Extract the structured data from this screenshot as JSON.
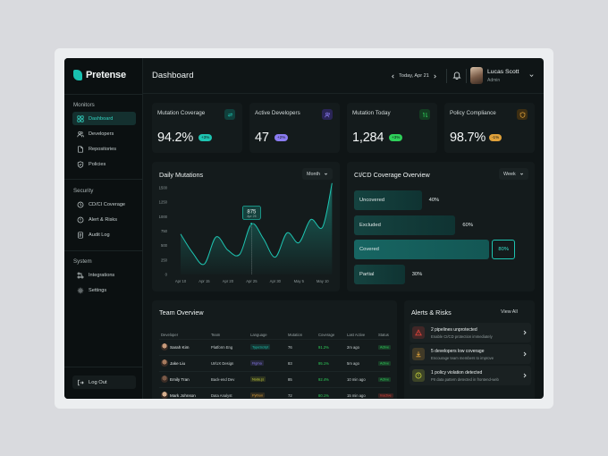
{
  "brand": {
    "name": "Pretense",
    "accent": "#18c0b0"
  },
  "sidebar": {
    "sections": [
      {
        "title": "Monitors",
        "items": [
          {
            "label": "Dashboard",
            "icon": "grid-icon",
            "active": true
          },
          {
            "label": "Developers",
            "icon": "users-icon"
          },
          {
            "label": "Repositories",
            "icon": "file-icon"
          },
          {
            "label": "Policies",
            "icon": "shield-icon"
          }
        ]
      },
      {
        "title": "Security",
        "items": [
          {
            "label": "CD/CI Coverage",
            "icon": "clock-icon"
          },
          {
            "label": "Alert & Risks",
            "icon": "alert-circle-icon"
          },
          {
            "label": "Audit Log",
            "icon": "doc-icon"
          }
        ]
      },
      {
        "title": "System",
        "items": [
          {
            "label": "Integrations",
            "icon": "plug-icon"
          },
          {
            "label": "Settings",
            "icon": "gear-icon"
          }
        ]
      }
    ],
    "logout_label": "Log Out"
  },
  "header": {
    "title": "Dashboard",
    "date": "Today, Apr 21",
    "user": {
      "name": "Lucas Scott",
      "role": "Admin"
    }
  },
  "stats": [
    {
      "label": "Mutation Coverage",
      "value": "94.2%",
      "badge": "+3%",
      "badge_color": "#1ec4b1",
      "icon": "refresh-icon"
    },
    {
      "label": "Active Developers",
      "value": "47",
      "badge": "+2%",
      "badge_color": "#8b7cf2",
      "icon": "users-icon"
    },
    {
      "label": "Mutation Today",
      "value": "1,284",
      "badge": "+3%",
      "badge_color": "#2fd05a",
      "icon": "swap-icon"
    },
    {
      "label": "Policy Compliance",
      "value": "98.7%",
      "badge": "-1%",
      "badge_color": "#e0a13a",
      "icon": "shield-icon"
    }
  ],
  "daily_mutations": {
    "title": "Daily Mutations",
    "range": "Month",
    "tooltip": {
      "value": "875",
      "date": "Apr 25"
    }
  },
  "chart_data": {
    "type": "area",
    "title": "Daily Mutations",
    "categories": [
      "Apr 10",
      "Apr 15",
      "Apr 20",
      "Apr 25",
      "Apr 30",
      "May 5",
      "May 10"
    ],
    "y_ticks": [
      0,
      250,
      500,
      750,
      1000,
      1250,
      1500
    ],
    "ylim": [
      0,
      1500
    ],
    "x": [
      0,
      0.5,
      1,
      1.5,
      2,
      2.5,
      3,
      3.5,
      4,
      4.5,
      5,
      5.5,
      6,
      6.4
    ],
    "values": [
      700,
      380,
      180,
      650,
      420,
      350,
      875,
      620,
      300,
      720,
      550,
      950,
      820,
      1580
    ]
  },
  "coverage": {
    "title": "CI/CD Coverage Overview",
    "range": "Week",
    "items": [
      {
        "label": "Uncovered",
        "pct": "40%",
        "value": 40
      },
      {
        "label": "Excluded",
        "pct": "60%",
        "value": 60
      },
      {
        "label": "Covered",
        "pct": "80%",
        "value": 80,
        "highlight": true
      },
      {
        "label": "Partial",
        "pct": "30%",
        "value": 30
      }
    ]
  },
  "team": {
    "title": "Team Overview",
    "columns": [
      "Developer",
      "Team",
      "Language",
      "Mutation",
      "Coverage",
      "Last Active",
      "Status"
    ],
    "rows": [
      {
        "name": "Sarah Kim",
        "team": "Platform Eng",
        "language": "TypeScript",
        "lang_color": "#1ec4b1",
        "mutation": "76",
        "coverage": "91.2%",
        "last_active": "2m ago",
        "status": "Active",
        "status_color": "#2fd05a"
      },
      {
        "name": "Jake Liu",
        "team": "UI/UX Design",
        "language": "Figma",
        "lang_color": "#8b7cf2",
        "mutation": "83",
        "coverage": "95.1%",
        "last_active": "5m ago",
        "status": "Active",
        "status_color": "#2fd05a"
      },
      {
        "name": "Emily Tran",
        "team": "Back-end Dev",
        "language": "Node.js",
        "lang_color": "#c8d23a",
        "mutation": "85",
        "coverage": "92.4%",
        "last_active": "10 min ago",
        "status": "Active",
        "status_color": "#2fd05a"
      },
      {
        "name": "Mark Johnson",
        "team": "Data Analyst",
        "language": "Python",
        "lang_color": "#e0a13a",
        "mutation": "72",
        "coverage": "80.1%",
        "last_active": "15 min ago",
        "status": "Inactive",
        "status_color": "#e0433a"
      }
    ]
  },
  "alerts": {
    "title": "Alerts & Risks",
    "view_all": "View All",
    "items": [
      {
        "title": "2 pipelines unprotected",
        "sub": "Enable CI/CD protection immediately",
        "color": "#e0433a",
        "icon": "warning-icon"
      },
      {
        "title": "5 developers low coverage",
        "sub": "Encourage team members to improve",
        "color": "#e0a13a",
        "icon": "download-icon"
      },
      {
        "title": "1 policy violation detected",
        "sub": "PII data pattern detected in frontend-web",
        "color": "#c8d23a",
        "icon": "alert-circle-icon"
      }
    ]
  }
}
